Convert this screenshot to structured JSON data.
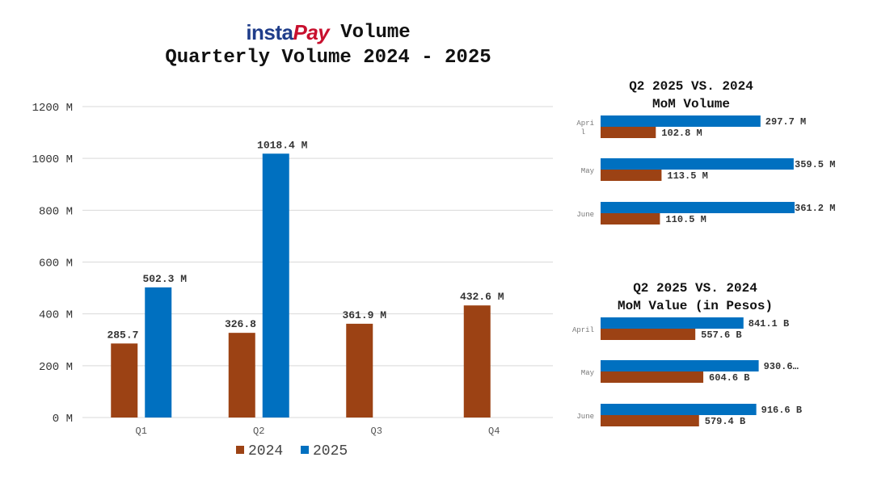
{
  "header": {
    "logo_part1": "insta",
    "logo_part2": "Pay",
    "title": "Volume",
    "subtitle": "Quarterly Volume 2024 - 2025"
  },
  "colors": {
    "series_2024": "#9c4214",
    "series_2025": "#0070c0",
    "grid": "#d9d9d9"
  },
  "chart_data": [
    {
      "type": "bar",
      "title": "Quarterly Volume 2024 - 2025",
      "categories": [
        "Q1",
        "Q2",
        "Q3",
        "Q4"
      ],
      "series": [
        {
          "name": "2024",
          "values": [
            285.7,
            326.8,
            361.9,
            432.6
          ],
          "labels": [
            "285.7 M",
            "326.8 M",
            "361.9 M",
            "432.6 M"
          ]
        },
        {
          "name": "2025",
          "values": [
            502.3,
            1018.4,
            null,
            null
          ],
          "labels": [
            "502.3 M",
            "1018.4 M",
            "",
            ""
          ]
        }
      ],
      "yticks": [
        "0 M",
        "200 M",
        "400 M",
        "600 M",
        "800 M",
        "1000 M",
        "1200 M"
      ],
      "ylim": [
        0,
        1200
      ],
      "legend": [
        "2024",
        "2025"
      ],
      "legend_position": "bottom"
    },
    {
      "type": "bar",
      "orientation": "horizontal",
      "title_line1": "Q2 2025 VS. 2024",
      "title_line2": "MoM Volume",
      "categories": [
        "Apri l",
        "May",
        "June"
      ],
      "series": [
        {
          "name": "2025",
          "values": [
            297.7,
            359.5,
            361.2
          ],
          "labels": [
            "297.7 M",
            "359.5 M",
            "361.2 M"
          ]
        },
        {
          "name": "2024",
          "values": [
            102.8,
            113.5,
            110.5
          ],
          "labels": [
            "102.8 M",
            "113.5 M",
            "110.5 M"
          ]
        }
      ]
    },
    {
      "type": "bar",
      "orientation": "horizontal",
      "title_line1": "Q2 2025 VS. 2024",
      "title_line2": "MoM Value (in Pesos)",
      "categories": [
        "April",
        "May",
        "June"
      ],
      "series": [
        {
          "name": "2025",
          "values": [
            841.1,
            930.6,
            916.6
          ],
          "labels": [
            "841.1 B",
            "930.6…",
            "916.6 B"
          ]
        },
        {
          "name": "2024",
          "values": [
            557.6,
            604.6,
            579.4
          ],
          "labels": [
            "557.6 B",
            "604.6 B",
            "579.4 B"
          ]
        }
      ]
    }
  ]
}
